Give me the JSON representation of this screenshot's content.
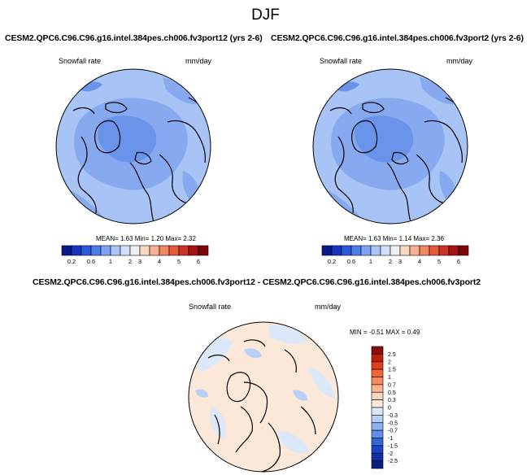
{
  "page_title": "DJF",
  "panels": [
    {
      "title": "CESM2.QPC6.C96.C96.g16.intel.384pes.ch006.fv3port12 (yrs 2-6)",
      "variable": "Snowfall rate",
      "units": "mm/day",
      "stats": "MEAN=   1.63  Min=   1.20  Max=   2.32"
    },
    {
      "title": "CESM2.QPC6.C96.C96.g16.intel.384pes.ch006.fv3port2 (yrs 2-6)",
      "variable": "Snowfall rate",
      "units": "mm/day",
      "stats": "MEAN=   1.63  Min=   1.14  Max=   2.36"
    },
    {
      "title": "CESM2.QPC6.C96.C96.g16.intel.384pes.ch006.fv3port12 - CESM2.QPC6.C96.C96.g16.intel.384pes.ch006.fv3port2",
      "variable": "Snowfall rate",
      "units": "mm/day",
      "stats": "MIN = -0.51 MAX =  0.49"
    }
  ],
  "colorbar_fields": {
    "ticks": [
      "0.2",
      "0.6",
      "1",
      "2",
      "3",
      "4",
      "5",
      "6"
    ],
    "colors": [
      "#0a1a8c",
      "#1535c0",
      "#2a5ad8",
      "#4c7ee8",
      "#7ea5f2",
      "#aac6f8",
      "#d0e0fc",
      "#f0f0f0",
      "#fbd6c2",
      "#f6b192",
      "#ef8762",
      "#e45a3c",
      "#cc3322",
      "#a51515",
      "#7a0808"
    ]
  },
  "colorbar_diff": {
    "ticks": [
      "2.5",
      "2",
      "1.5",
      "1",
      "0.7",
      "0.5",
      "0.3",
      "0",
      "-0.3",
      "-0.5",
      "-0.7",
      "-1",
      "-1.5",
      "-2",
      "-2.5"
    ],
    "colors": [
      "#8c0a0a",
      "#c0200f",
      "#e23c1c",
      "#f5622d",
      "#f78b5c",
      "#fab48e",
      "#fcd6bf",
      "#fbe8d9",
      "#dce8fa",
      "#b8d0f6",
      "#8cb0f0",
      "#5f8ce6",
      "#3566d8",
      "#1c46c4",
      "#1030a8",
      "#0a1a80"
    ]
  },
  "map_colors": {
    "ocean_light": "#a8c4f6",
    "ocean_mid": "#86a9f0",
    "ocean_dark": "#6a93ea",
    "diff_neutral": "#fbe8d9",
    "diff_blue": "#dce8fa",
    "diff_blue2": "#b8d0f6",
    "coast": "#000000"
  }
}
